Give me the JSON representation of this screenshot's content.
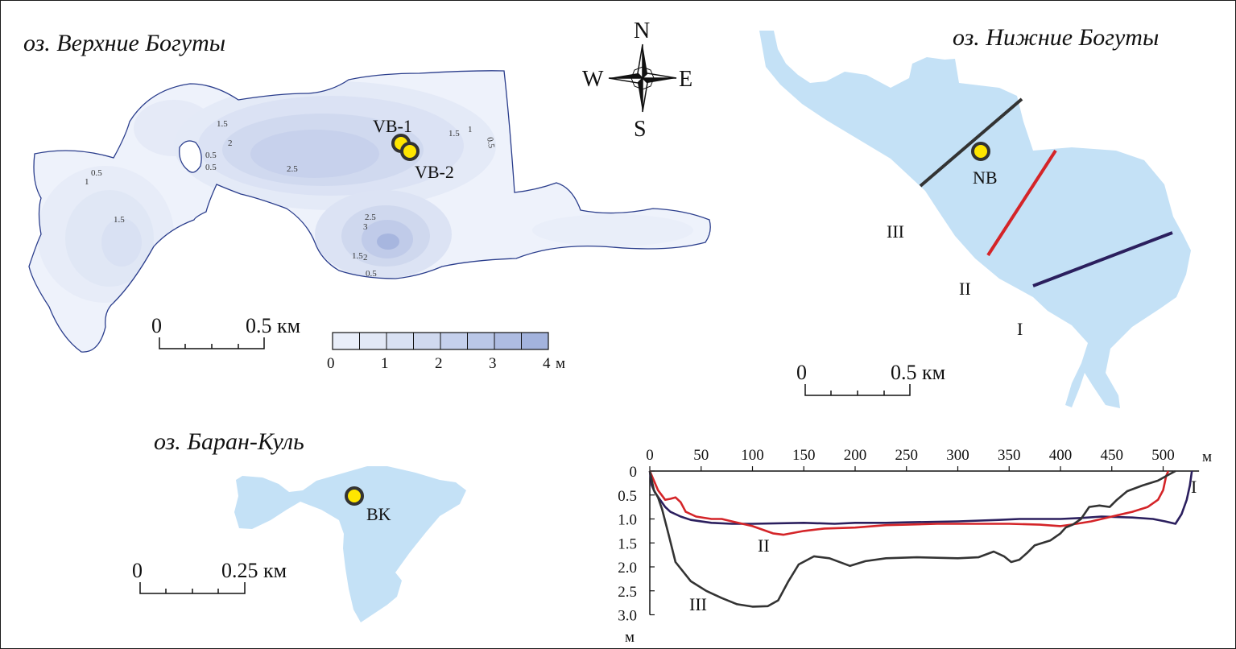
{
  "lakes": {
    "upper": {
      "title": "оз. Верхние Богуты",
      "stations": [
        "VB-1",
        "VB-2"
      ],
      "contours": [
        "1.5",
        "2",
        "0.5",
        "0.5",
        "1",
        "1.5",
        "2.5",
        "1.5",
        "1",
        "0.5",
        "3",
        "2.5",
        "2",
        "1.5",
        "0.5"
      ],
      "scale": {
        "start": "0",
        "end": "0.5 км"
      }
    },
    "lower": {
      "title": "оз. Нижние Богуты",
      "station": "NB",
      "transects": [
        "III",
        "II",
        "I"
      ],
      "scale": {
        "start": "0",
        "end": "0.5 км"
      }
    },
    "baran": {
      "title": "оз. Баран-Куль",
      "station": "BK",
      "scale": {
        "start": "0",
        "end": "0.25 км"
      }
    }
  },
  "compass": {
    "n": "N",
    "s": "S",
    "e": "E",
    "w": "W"
  },
  "depth_legend": {
    "ticks": [
      "0",
      "1",
      "2",
      "3",
      "4"
    ],
    "unit": "м",
    "colors": [
      "#e9eef9",
      "#e2e8f6",
      "#d9e1f3",
      "#d0d9ef",
      "#c5d0ec",
      "#bac7e7",
      "#aebce2",
      "#a3b3dd"
    ]
  },
  "chart_data": {
    "type": "line",
    "x_unit": "м",
    "y_unit": "м",
    "xlim": [
      0,
      535
    ],
    "ylim": [
      0,
      3.0
    ],
    "x_ticks": [
      "0",
      "50",
      "100",
      "150",
      "200",
      "250",
      "300",
      "350",
      "400",
      "450",
      "500"
    ],
    "y_ticks": [
      "0",
      "0.5",
      "1.0",
      "1.5",
      "2.0",
      "2.5",
      "3.0"
    ],
    "series": [
      {
        "name": "I",
        "color": "#2b1f5e",
        "points": [
          [
            0,
            0
          ],
          [
            2,
            0.3
          ],
          [
            5,
            0.45
          ],
          [
            10,
            0.6
          ],
          [
            15,
            0.75
          ],
          [
            20,
            0.85
          ],
          [
            30,
            0.95
          ],
          [
            40,
            1.02
          ],
          [
            60,
            1.08
          ],
          [
            80,
            1.1
          ],
          [
            100,
            1.1
          ],
          [
            150,
            1.08
          ],
          [
            180,
            1.1
          ],
          [
            200,
            1.08
          ],
          [
            230,
            1.08
          ],
          [
            250,
            1.07
          ],
          [
            300,
            1.05
          ],
          [
            340,
            1.02
          ],
          [
            360,
            1.0
          ],
          [
            400,
            1.0
          ],
          [
            420,
            0.98
          ],
          [
            440,
            0.95
          ],
          [
            470,
            0.97
          ],
          [
            490,
            1.0
          ],
          [
            502,
            1.05
          ],
          [
            512,
            1.1
          ],
          [
            518,
            0.9
          ],
          [
            523,
            0.6
          ],
          [
            526,
            0.3
          ],
          [
            528,
            0
          ]
        ]
      },
      {
        "name": "II",
        "color": "#d42428",
        "points": [
          [
            0,
            0
          ],
          [
            3,
            0.15
          ],
          [
            8,
            0.4
          ],
          [
            15,
            0.6
          ],
          [
            20,
            0.58
          ],
          [
            25,
            0.55
          ],
          [
            30,
            0.65
          ],
          [
            35,
            0.85
          ],
          [
            45,
            0.95
          ],
          [
            60,
            1.0
          ],
          [
            70,
            1.0
          ],
          [
            80,
            1.05
          ],
          [
            100,
            1.15
          ],
          [
            120,
            1.3
          ],
          [
            130,
            1.33
          ],
          [
            150,
            1.25
          ],
          [
            170,
            1.2
          ],
          [
            200,
            1.18
          ],
          [
            230,
            1.13
          ],
          [
            250,
            1.12
          ],
          [
            280,
            1.1
          ],
          [
            300,
            1.1
          ],
          [
            350,
            1.1
          ],
          [
            380,
            1.12
          ],
          [
            400,
            1.15
          ],
          [
            410,
            1.12
          ],
          [
            430,
            1.05
          ],
          [
            450,
            0.95
          ],
          [
            470,
            0.85
          ],
          [
            485,
            0.75
          ],
          [
            495,
            0.6
          ],
          [
            500,
            0.4
          ],
          [
            503,
            0.1
          ],
          [
            505,
            0
          ]
        ]
      },
      {
        "name": "III",
        "color": "#333333",
        "points": [
          [
            0,
            0
          ],
          [
            4,
            0.4
          ],
          [
            8,
            0.55
          ],
          [
            12,
            0.8
          ],
          [
            18,
            1.3
          ],
          [
            25,
            1.9
          ],
          [
            40,
            2.3
          ],
          [
            55,
            2.5
          ],
          [
            70,
            2.65
          ],
          [
            85,
            2.78
          ],
          [
            100,
            2.83
          ],
          [
            115,
            2.82
          ],
          [
            125,
            2.7
          ],
          [
            135,
            2.3
          ],
          [
            145,
            1.95
          ],
          [
            160,
            1.78
          ],
          [
            175,
            1.82
          ],
          [
            195,
            1.98
          ],
          [
            210,
            1.88
          ],
          [
            230,
            1.82
          ],
          [
            260,
            1.8
          ],
          [
            300,
            1.82
          ],
          [
            320,
            1.8
          ],
          [
            335,
            1.68
          ],
          [
            345,
            1.78
          ],
          [
            352,
            1.9
          ],
          [
            360,
            1.85
          ],
          [
            368,
            1.7
          ],
          [
            375,
            1.55
          ],
          [
            390,
            1.45
          ],
          [
            400,
            1.3
          ],
          [
            405,
            1.18
          ],
          [
            412,
            1.12
          ],
          [
            420,
            1.0
          ],
          [
            428,
            0.75
          ],
          [
            438,
            0.72
          ],
          [
            448,
            0.75
          ],
          [
            455,
            0.6
          ],
          [
            465,
            0.42
          ],
          [
            480,
            0.3
          ],
          [
            495,
            0.2
          ],
          [
            505,
            0.08
          ],
          [
            512,
            0
          ]
        ]
      }
    ]
  }
}
